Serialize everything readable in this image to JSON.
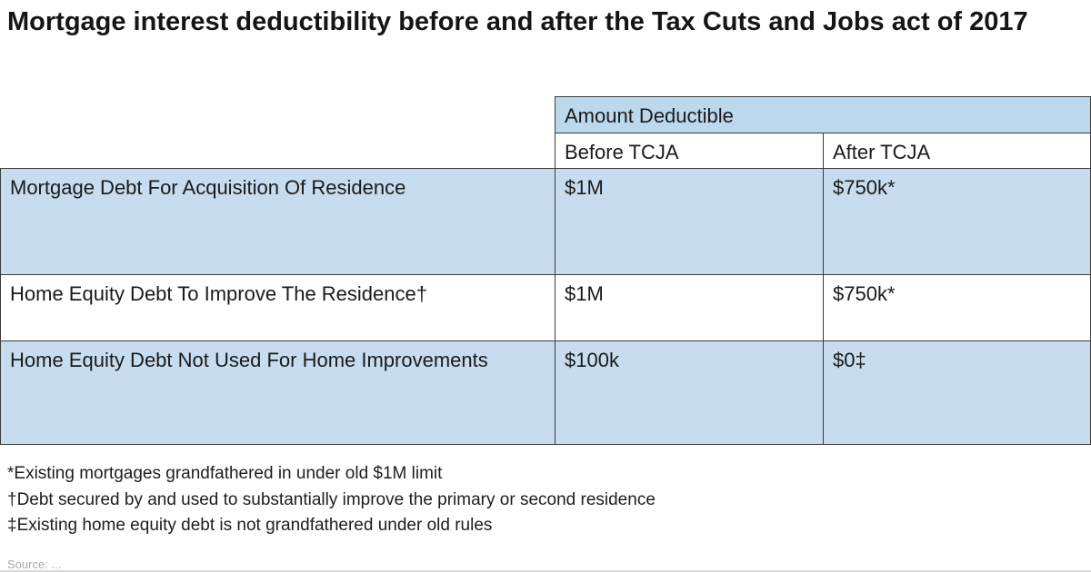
{
  "chart_data": {
    "type": "table",
    "title": "Mortgage interest deductibility before and after the Tax Cuts and Jobs act of 2017",
    "column_group": "Amount Deductible",
    "columns": [
      "",
      "Before TCJA",
      "After TCJA"
    ],
    "rows": [
      [
        "Mortgage Debt For Acquisition Of Residence",
        "$1M",
        "$750k*"
      ],
      [
        "Home Equity Debt To Improve The Residence†",
        "$1M",
        "$750k*"
      ],
      [
        "Home Equity Debt Not Used For Home Improvements",
        "$100k",
        "$0‡"
      ]
    ],
    "footnotes": [
      "*Existing mortgages grandfathered in under old $1M limit",
      "†Debt secured by and used to substantially improve the primary or second residence",
      "‡Existing home equity debt is not grandfathered under old rules"
    ],
    "layout_hints": {
      "row_backgrounds": [
        "blue",
        "white",
        "blue"
      ],
      "grid": "on"
    }
  },
  "source_partial": "Source: ...",
  "colors": {
    "row_blue": "#c7ddef",
    "header_blue": "#bcd8ec",
    "border": "#3c3c3c",
    "title_text": "#151515"
  }
}
